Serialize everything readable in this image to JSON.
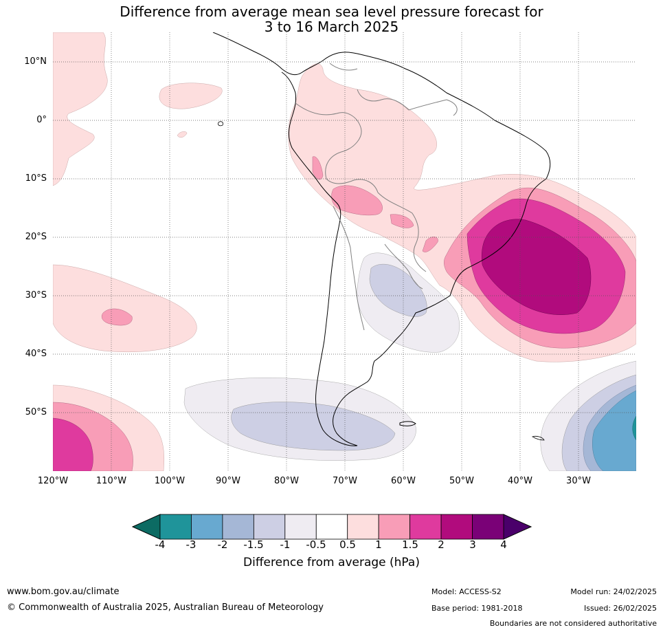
{
  "title_line1": "Difference from average mean sea level pressure forecast for",
  "title_line2": "3 to 16 March 2025",
  "lat_labels": [
    "10°N",
    "0°",
    "10°S",
    "20°S",
    "30°S",
    "40°S",
    "50°S"
  ],
  "lon_labels": [
    "120°W",
    "110°W",
    "100°W",
    "90°W",
    "80°W",
    "70°W",
    "60°W",
    "50°W",
    "40°W",
    "30°W"
  ],
  "colorbar": {
    "title": "Difference from average (hPa)",
    "tick_labels": [
      "-4",
      "-3",
      "-2",
      "-1.5",
      "-1",
      "-0.5",
      "0.5",
      "1",
      "1.5",
      "2",
      "3",
      "4"
    ],
    "colors": [
      "#0c6b63",
      "#1f949a",
      "#68a9d0",
      "#a5b7d6",
      "#cdcfe4",
      "#efecf2",
      "#ffffff",
      "#fddede",
      "#f89db7",
      "#df3a9e",
      "#b10b7d",
      "#7a0177",
      "#4a006a"
    ]
  },
  "footer": {
    "url": "www.bom.gov.au/climate",
    "copyright": "© Commonwealth of Australia 2025, Australian Bureau of Meteorology",
    "model": "Model: ACCESS-S2",
    "base_period": "Base period: 1981-2018",
    "model_run": "Model run: 24/02/2025",
    "issued": "Issued: 26/02/2025",
    "boundaries_note": "Boundaries are not considered authoritative"
  }
}
